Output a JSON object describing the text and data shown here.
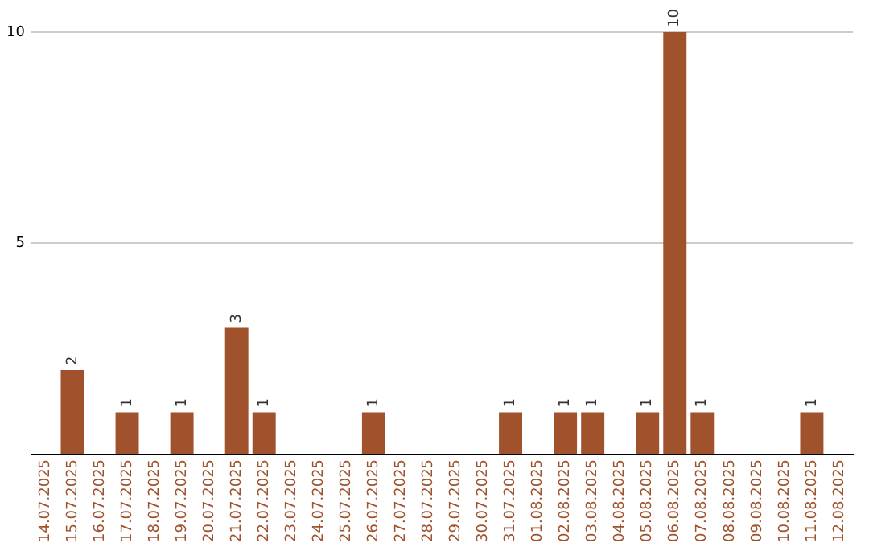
{
  "chart_data": {
    "type": "bar",
    "categories": [
      "14.07.2025",
      "15.07.2025",
      "16.07.2025",
      "17.07.2025",
      "18.07.2025",
      "19.07.2025",
      "20.07.2025",
      "21.07.2025",
      "22.07.2025",
      "23.07.2025",
      "24.07.2025",
      "25.07.2025",
      "26.07.2025",
      "27.07.2025",
      "28.07.2025",
      "29.07.2025",
      "30.07.2025",
      "31.07.2025",
      "01.08.2025",
      "02.08.2025",
      "03.08.2025",
      "04.08.2025",
      "05.08.2025",
      "06.08.2025",
      "07.08.2025",
      "08.08.2025",
      "09.08.2025",
      "10.08.2025",
      "11.08.2025",
      "12.08.2025"
    ],
    "values": [
      0,
      2,
      0,
      1,
      0,
      1,
      0,
      3,
      1,
      0,
      0,
      0,
      1,
      0,
      0,
      0,
      0,
      1,
      0,
      1,
      1,
      0,
      1,
      10,
      1,
      0,
      0,
      0,
      1,
      0
    ],
    "value_labels": [
      null,
      "2",
      null,
      "1",
      null,
      "1",
      null,
      "3",
      "1",
      null,
      null,
      null,
      "1",
      null,
      null,
      null,
      null,
      "1",
      null,
      "1",
      "1",
      null,
      "1",
      "10",
      "1",
      null,
      null,
      null,
      "1",
      null
    ],
    "color": "#a0522d",
    "ylim": [
      0,
      10
    ],
    "yticks": [
      5,
      10
    ],
    "grid": "y"
  }
}
